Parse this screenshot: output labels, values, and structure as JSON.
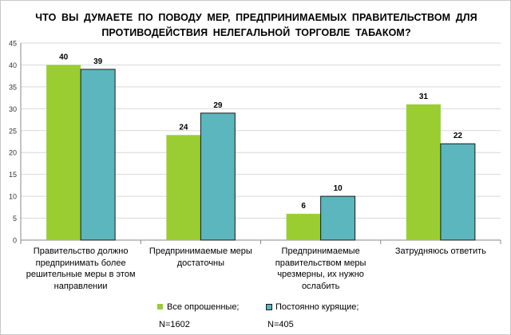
{
  "chart_data": {
    "type": "bar",
    "title": "ЧТО ВЫ ДУМАЕТЕ ПО ПОВОДУ МЕР, ПРЕДПРИНИМАЕМЫХ ПРАВИТЕЛЬСТВОМ ДЛЯ ПРОТИВОДЕЙСТВИЯ НЕЛЕГАЛЬНОЙ ТОРГОВЛЕ ТАБАКОМ?",
    "categories": [
      "Правительство должно предпринимать более решительные меры в этом направлении",
      "Предпринимаемые меры достаточны",
      "Предпринимаемые правительством меры чрезмерны, их нужно ослабить",
      "Затрудняюсь ответить"
    ],
    "series": [
      {
        "name": "Все опрошенные; N=1602",
        "values": [
          40,
          24,
          6,
          31
        ],
        "color": "#9ACD32"
      },
      {
        "name": "Постоянно курящие; N=405",
        "values": [
          39,
          29,
          10,
          22
        ],
        "color": "#5BB6BD"
      }
    ],
    "ylim": [
      0,
      45
    ],
    "yticks": [
      0,
      5,
      10,
      15,
      20,
      25,
      30,
      35,
      40,
      45
    ],
    "grid": true,
    "legend_position": "bottom-center"
  },
  "category_label_lines": [
    [
      "Правительство должно",
      "предпринимать более",
      "решительные меры в этом",
      "направлении"
    ],
    [
      "Предпринимаемые меры",
      "достаточны"
    ],
    [
      "Предпринимаемые",
      "правительством меры",
      "чрезмерны, их нужно",
      "ослабить"
    ],
    [
      "Затрудняюсь ответить"
    ]
  ],
  "legend": [
    {
      "line1": "Все опрошенные;",
      "line2": "N=1602"
    },
    {
      "line1": "Постоянно курящие;",
      "line2": "N=405"
    }
  ]
}
